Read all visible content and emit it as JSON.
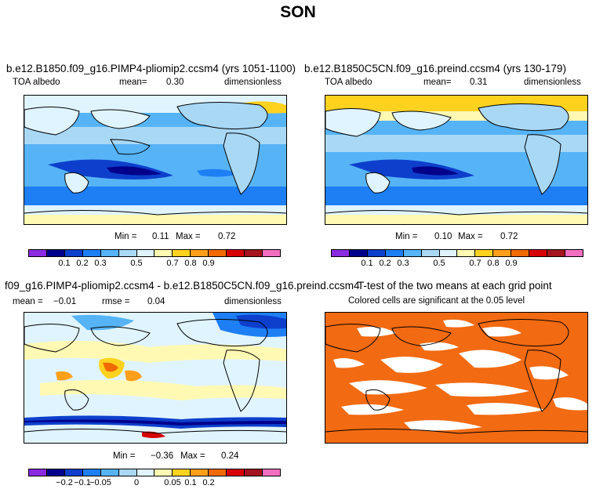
{
  "title": "SON",
  "chart_data": [
    {
      "type": "heatmap",
      "title": "b.e12.B1850.f09_g16.PIMP4-pliomip2.ccsm4 (yrs 1051-1100)",
      "variable": "TOA albedo",
      "mean_label": "mean=",
      "mean": "0.30",
      "units": "dimensionless",
      "min_label": "Min =",
      "min": "0.11",
      "max_label": "Max =",
      "max": "0.72",
      "colorbar_ticks": [
        "0.1",
        "0.2",
        "0.3",
        "0.5",
        "0.7",
        "0.8",
        "0.9"
      ],
      "colorbar_colors": [
        "#8a2be2",
        "#00008b",
        "#0d3fcc",
        "#1e7ff5",
        "#56b4f6",
        "#a9d8f5",
        "#e0f4ff",
        "#fff9b3",
        "#ffd21f",
        "#ff9f1a",
        "#f06a00",
        "#d70000",
        "#a4141e",
        "#f26ec0"
      ]
    },
    {
      "type": "heatmap",
      "title": "b.e12.B1850C5CN.f09_g16.preind.ccsm4 (yrs 130-179)",
      "variable": "TOA albedo",
      "mean_label": "mean=",
      "mean": "0.31",
      "units": "dimensionless",
      "min_label": "Min =",
      "min": "0.10",
      "max_label": "Max =",
      "max": "0.72",
      "colorbar_ticks": [
        "0.1",
        "0.2",
        "0.3",
        "0.5",
        "0.7",
        "0.8",
        "0.9"
      ],
      "colorbar_colors": [
        "#8a2be2",
        "#00008b",
        "#0d3fcc",
        "#1e7ff5",
        "#56b4f6",
        "#a9d8f5",
        "#e0f4ff",
        "#fff9b3",
        "#ffd21f",
        "#ff9f1a",
        "#f06a00",
        "#d70000",
        "#a4141e",
        "#f26ec0"
      ]
    },
    {
      "type": "heatmap",
      "title": "f09_g16.PIMP4-pliomip2.ccsm4 - b.e12.B1850C5CN.f09_g16.preind.ccsm4",
      "mean_label": "mean =",
      "mean": "−0.01",
      "rmse_label": "rmse =",
      "rmse": "0.04",
      "units": "dimensionless",
      "min_label": "Min =",
      "min": "−0.36",
      "max_label": "Max =",
      "max": "0.24",
      "colorbar_ticks": [
        "−0.2",
        "−0.1",
        "−0.05",
        "0",
        "0.05",
        "0.1",
        "0.2"
      ],
      "colorbar_colors": [
        "#8a2be2",
        "#00008b",
        "#0d3fcc",
        "#1e7ff5",
        "#56b4f6",
        "#a9d8f5",
        "#e0f4ff",
        "#fff9b3",
        "#ffd21f",
        "#ff9f1a",
        "#f06a00",
        "#d70000",
        "#a4141e",
        "#f26ec0"
      ]
    },
    {
      "type": "heatmap",
      "title": "T-test of the two means at each grid point",
      "subtitle": "Colored cells are significant at the 0.05 level",
      "significant_color": "#f26a12",
      "nonsignificant_color": "#ffffff"
    }
  ]
}
